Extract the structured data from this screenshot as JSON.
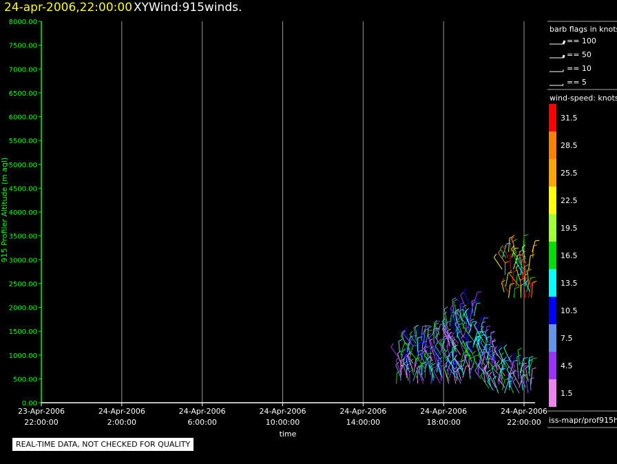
{
  "header": {
    "datetime": "24-apr-2006,22:00:00",
    "product": "XYWind:915winds."
  },
  "chart_data": {
    "type": "scatter",
    "subtype": "wind-barbs",
    "ylabel": "915 Profiler Altitude (m agl)",
    "xlabel": "time",
    "ylim": [
      0,
      8000
    ],
    "y_ticks": [
      "0.00",
      "500.00",
      "1000.00",
      "1500.00",
      "2000.00",
      "2500.00",
      "3000.00",
      "3500.00",
      "4000.00",
      "4500.00",
      "5000.00",
      "5500.00",
      "6000.00",
      "6500.00",
      "7000.00",
      "7500.00",
      "8000.00"
    ],
    "x_ticks": [
      {
        "hour": 0,
        "date": "23-Apr-2006",
        "time": "22:00:00"
      },
      {
        "hour": 4,
        "date": "24-Apr-2006",
        "time": "2:00:00"
      },
      {
        "hour": 8,
        "date": "24-Apr-2006",
        "time": "6:00:00"
      },
      {
        "hour": 12,
        "date": "24-Apr-2006",
        "time": "10:00:00"
      },
      {
        "hour": 16,
        "date": "24-Apr-2006",
        "time": "14:00:00"
      },
      {
        "hour": 20,
        "date": "24-Apr-2006",
        "time": "18:00:00"
      },
      {
        "hour": 24,
        "date": "24-Apr-2006",
        "time": "22:00:00"
      }
    ],
    "grid": "vertical",
    "barb_profiles": [
      {
        "hour": 17.8,
        "y0": 400,
        "y1": 1100
      },
      {
        "hour": 18.2,
        "y0": 400,
        "y1": 1300
      },
      {
        "hour": 18.6,
        "y0": 400,
        "y1": 1400
      },
      {
        "hour": 19.0,
        "y0": 400,
        "y1": 1450
      },
      {
        "hour": 19.4,
        "y0": 400,
        "y1": 1500
      },
      {
        "hour": 19.8,
        "y0": 400,
        "y1": 1450
      },
      {
        "hour": 20.2,
        "y0": 400,
        "y1": 1700
      },
      {
        "hour": 20.6,
        "y0": 400,
        "y1": 1900
      },
      {
        "hour": 21.0,
        "y0": 400,
        "y1": 2000
      },
      {
        "hour": 21.4,
        "y0": 500,
        "y1": 2100
      },
      {
        "hour": 21.8,
        "y0": 500,
        "y1": 1600
      },
      {
        "hour": 22.2,
        "y0": 300,
        "y1": 1400
      },
      {
        "hour": 22.6,
        "y0": 200,
        "y1": 1100
      },
      {
        "hour": 23.0,
        "y0": 200,
        "y1": 900
      },
      {
        "hour": 23.4,
        "y0": 200,
        "y1": 900
      },
      {
        "hour": 23.8,
        "y0": 200,
        "y1": 800
      },
      {
        "hour": 24.2,
        "y0": 200,
        "y1": 700
      }
    ],
    "upper_barbs": {
      "hour_start": 22.9,
      "hour_end": 24.4,
      "y0": 2200,
      "y1": 3200
    },
    "legend_flags": {
      "title": "barb flags in knots",
      "items": [
        "== 100",
        "== 50",
        "== 10",
        "== 5"
      ]
    },
    "legend_colors": {
      "title": "wind-speed: knots",
      "items": [
        {
          "label": "31.5",
          "color": "#ff0000"
        },
        {
          "label": "28.5",
          "color": "#ff8000"
        },
        {
          "label": "25.5",
          "color": "#ffa500"
        },
        {
          "label": "22.5",
          "color": "#ffff00"
        },
        {
          "label": "19.5",
          "color": "#a0ff30"
        },
        {
          "label": "16.5",
          "color": "#00e000"
        },
        {
          "label": "13.5",
          "color": "#00ffff"
        },
        {
          "label": "10.5",
          "color": "#0000ff"
        },
        {
          "label": "7.5",
          "color": "#6495ed"
        },
        {
          "label": "4.5",
          "color": "#9b30ff"
        },
        {
          "label": "1.5",
          "color": "#ee82ee"
        }
      ]
    },
    "source": "iss-mapr/prof915h"
  },
  "footer": {
    "qc_notice": "REAL-TIME DATA, NOT CHECKED FOR QUALITY"
  },
  "colors": {
    "title_date": "#ffff00",
    "axis_y": "#00ff00",
    "axis_x": "#ffffff",
    "grid": "#9a9a9a"
  }
}
